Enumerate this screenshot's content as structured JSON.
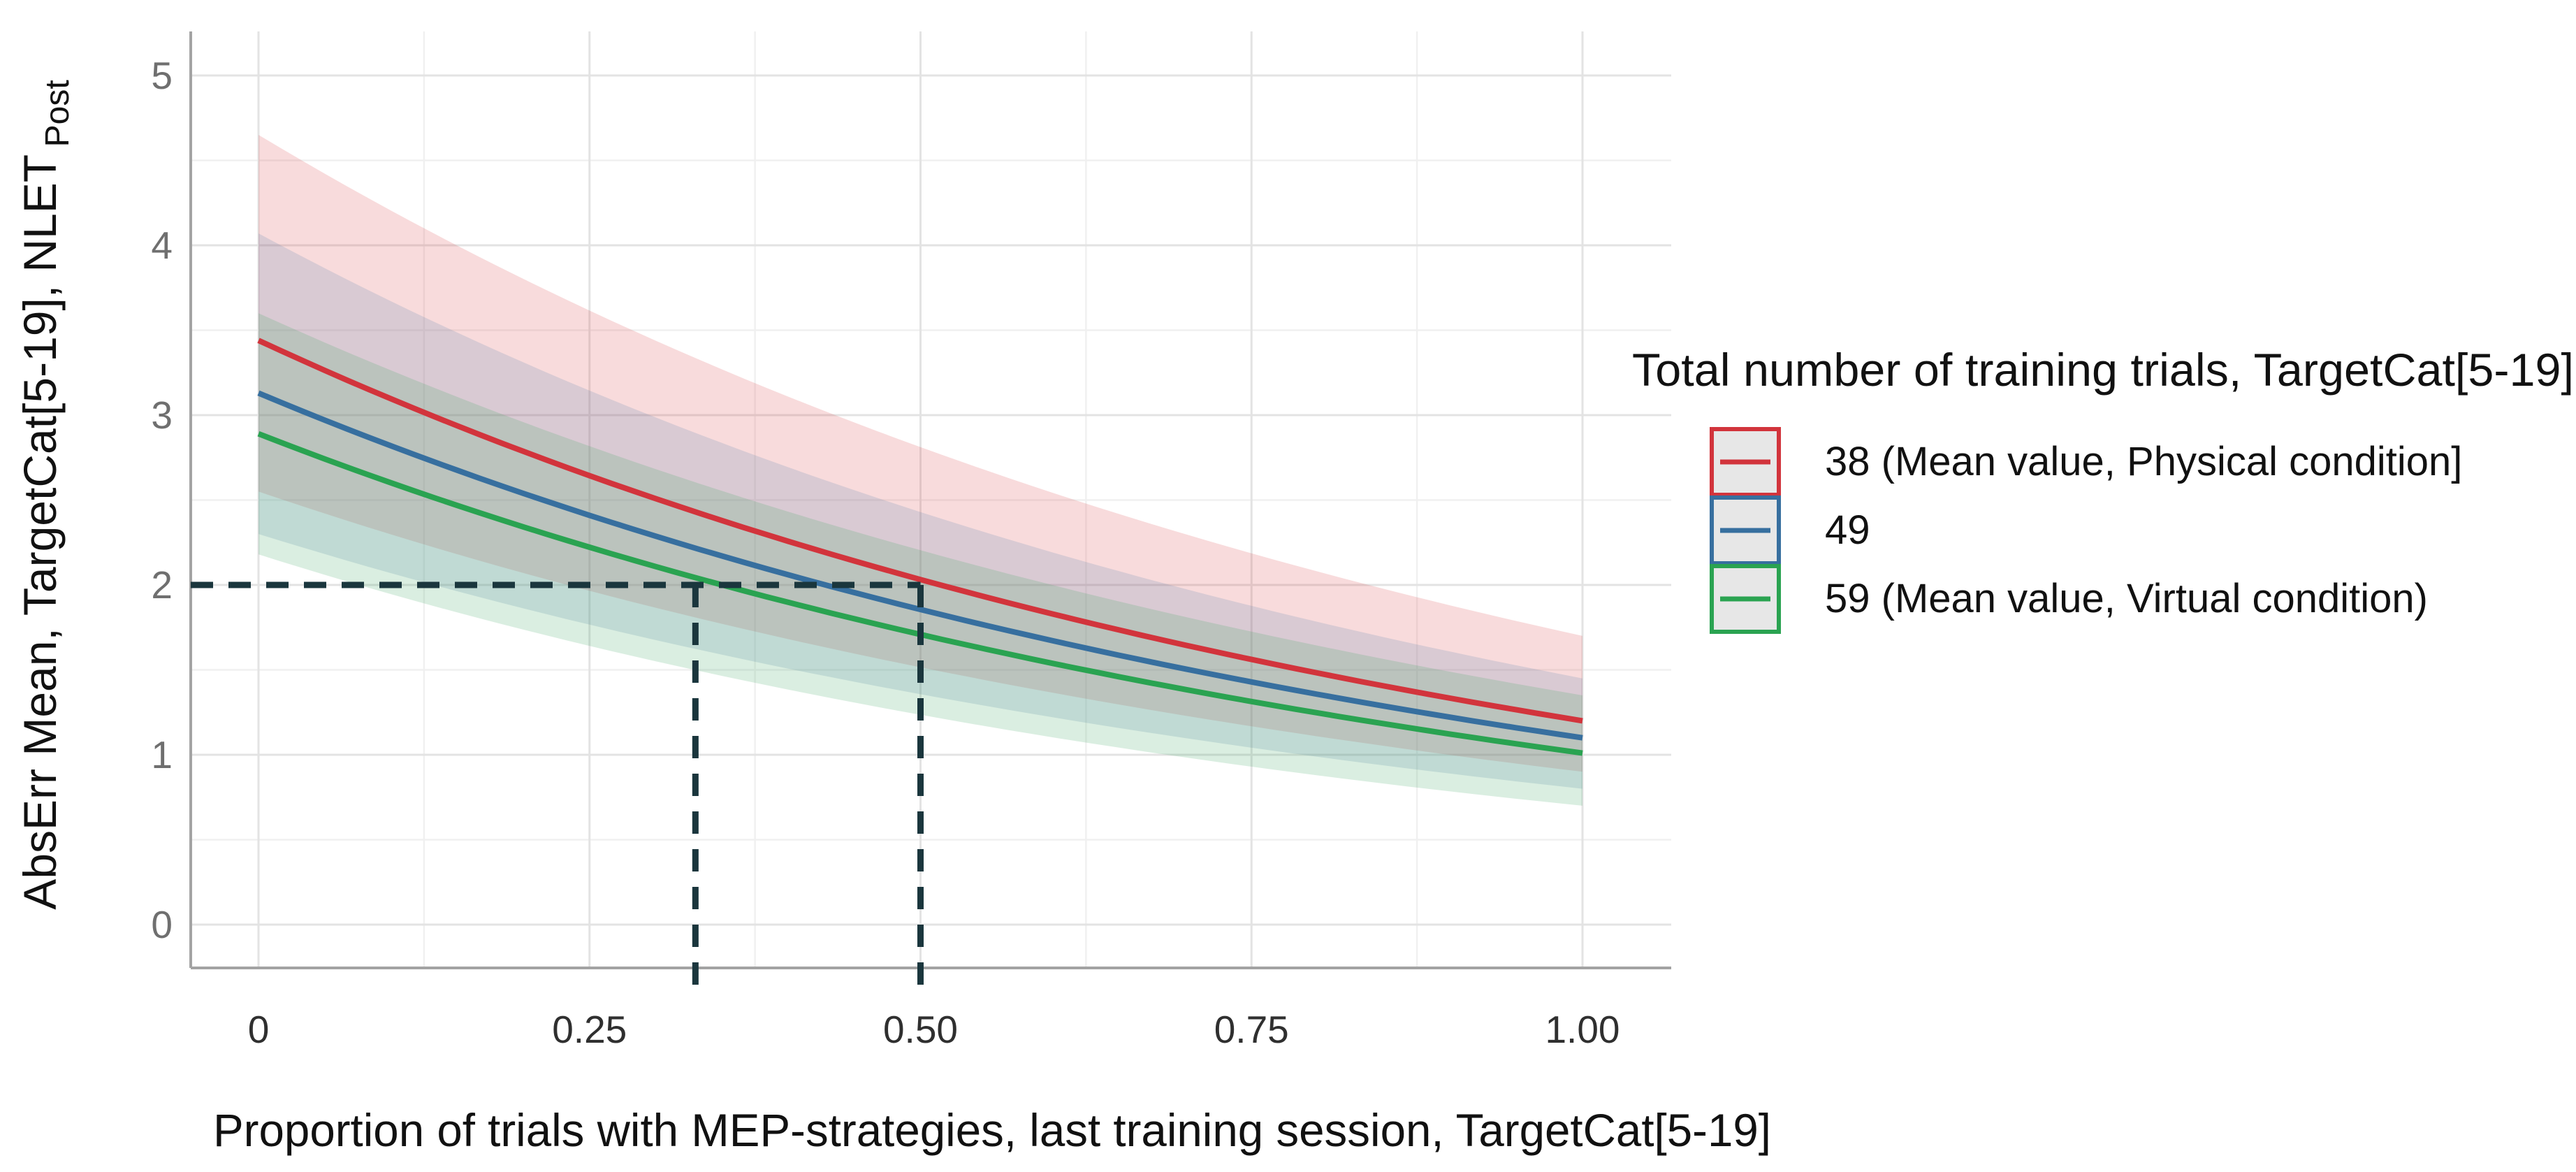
{
  "chart_data": {
    "type": "line",
    "title": "",
    "xlabel": "Proportion of trials with MEP-strategies, last training session, TargetCat[5-19]",
    "ylabel": "AbsErr Mean, TargetCat[5-19], NLET",
    "ylabel_subscript": "Post",
    "xlim": [
      -0.05,
      1.07
    ],
    "ylim": [
      -0.26,
      5.27
    ],
    "grid": "on",
    "legend_position": "right",
    "x_tick_values": [
      0,
      0.25,
      0.5,
      0.75,
      1.0
    ],
    "x_tick_labels": [
      "0",
      "0.25",
      "0.50",
      "0.75",
      "1.00"
    ],
    "y_tick_values": [
      0,
      1,
      2,
      3,
      4,
      5
    ],
    "y_tick_labels": [
      "0",
      "1",
      "2",
      "3",
      "4",
      "5"
    ],
    "x_minor_ticks": [
      0.125,
      0.375,
      0.625,
      0.875
    ],
    "y_minor_ticks": [
      0.5,
      1.5,
      2.5,
      3.5,
      4.5
    ],
    "x": [
      0,
      0.25,
      0.5,
      0.75,
      1.0
    ],
    "series": [
      {
        "name": "38 (Mean value, Physical condition]",
        "color": "#d2343c",
        "fill": "#dd4a50",
        "values": [
          3.44,
          2.64,
          2.02,
          1.55,
          1.2
        ],
        "band_upper": [
          4.65,
          3.61,
          2.81,
          2.18,
          1.7
        ],
        "band_lower": [
          2.55,
          1.97,
          1.51,
          1.17,
          0.9
        ]
      },
      {
        "name": "49",
        "color": "#376f9f",
        "fill": "#5f86ad",
        "values": [
          3.13,
          2.41,
          1.85,
          1.43,
          1.1
        ],
        "band_upper": [
          4.07,
          3.15,
          2.43,
          1.88,
          1.45
        ],
        "band_lower": [
          2.3,
          1.77,
          1.36,
          1.04,
          0.8
        ]
      },
      {
        "name": "59 (Mean value, Virtual condition)",
        "color": "#2aa351",
        "fill": "#44ab68",
        "values": [
          2.89,
          2.22,
          1.71,
          1.31,
          1.01
        ],
        "band_upper": [
          3.6,
          2.82,
          2.2,
          1.73,
          1.35
        ],
        "band_lower": [
          2.18,
          1.64,
          1.24,
          0.93,
          0.7
        ]
      }
    ],
    "band_opacity": 0.2,
    "reference_lines": {
      "color": "#1a363d",
      "y_value": 2,
      "x_drop_values": [
        0.33,
        0.5
      ],
      "style": "dashed"
    },
    "legend": {
      "title": "Total number of training trials, TargetCat[5-19]",
      "entries": [
        "38 (Mean value, Physical condition]",
        "49",
        "59 (Mean value, Virtual condition)"
      ]
    },
    "colors": {
      "grid_major": "#e3e3e3",
      "grid_minor": "#f0f0f0",
      "axis_line": "#a3a3a3",
      "legend_key_fill": "#e7e7e7"
    }
  }
}
